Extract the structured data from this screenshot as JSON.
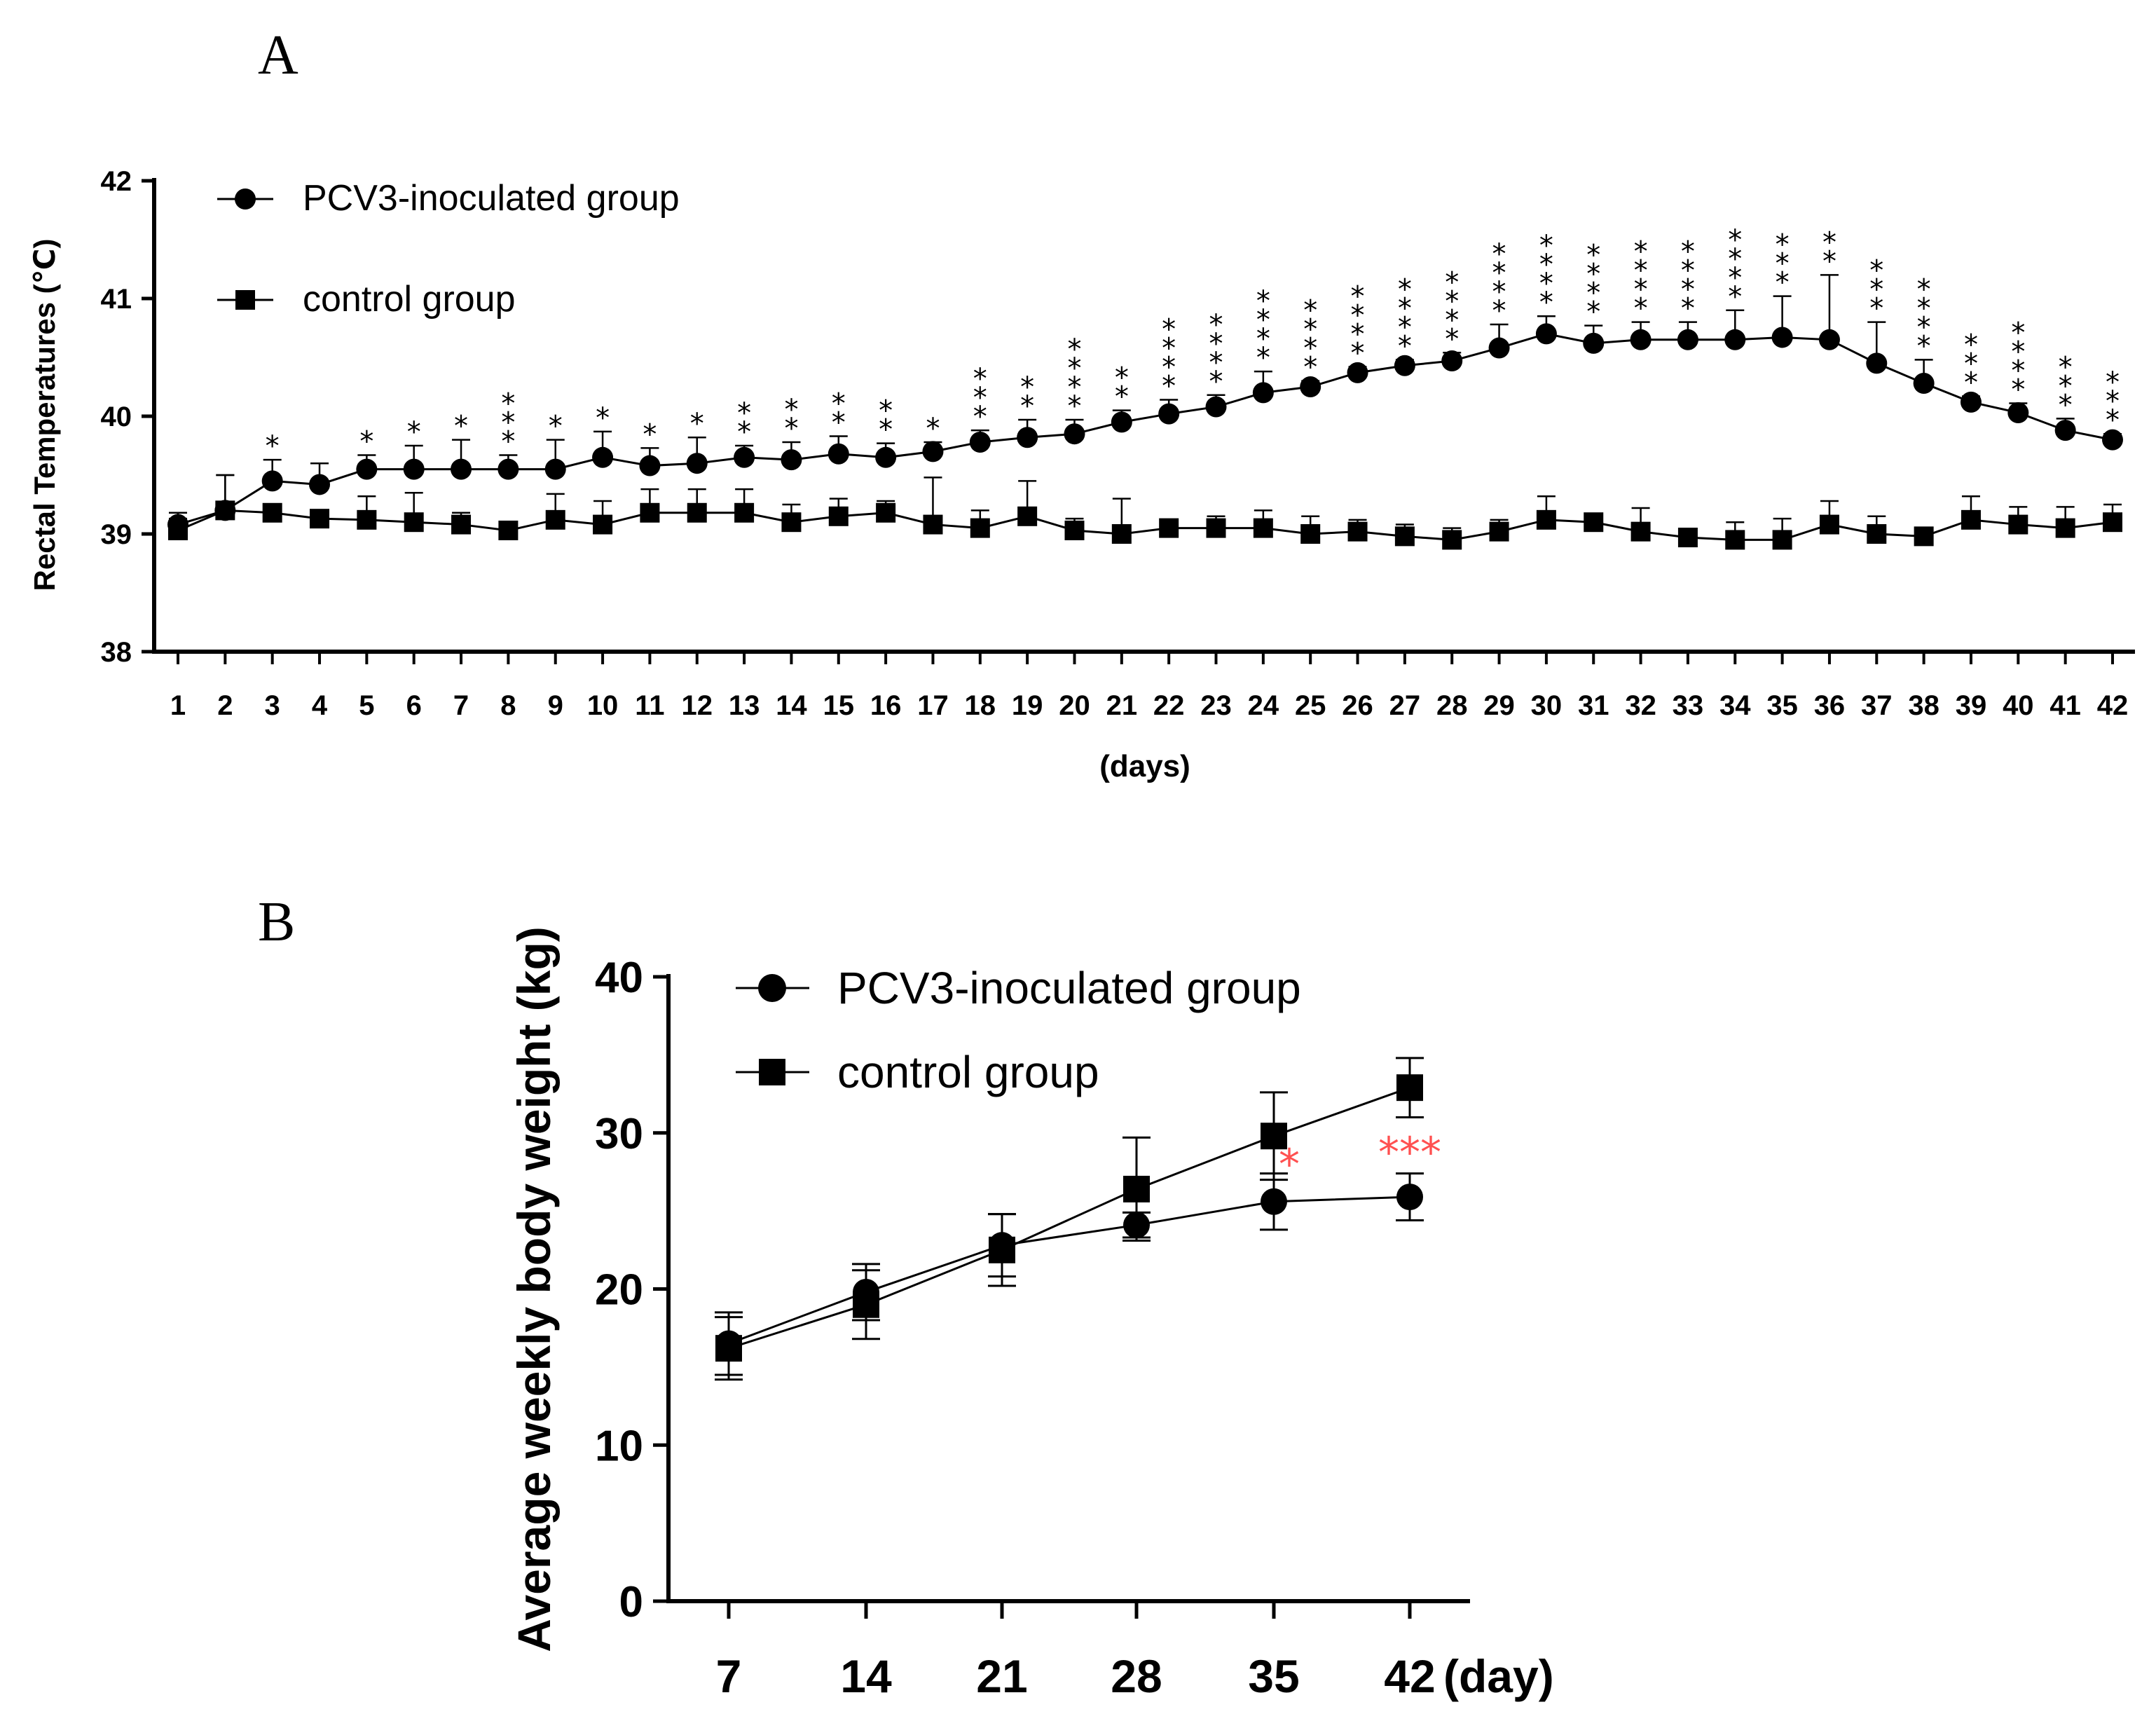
{
  "panels": {
    "a_label": "A",
    "b_label": "B"
  },
  "chart_data": [
    {
      "id": "A",
      "type": "line",
      "title": "",
      "xlabel": "(days)",
      "ylabel": "Rectal Temperatures (℃)",
      "ylim": [
        38,
        42
      ],
      "yticks": [
        38,
        39,
        40,
        41,
        42
      ],
      "xlim": [
        1,
        42
      ],
      "x": [
        1,
        2,
        3,
        4,
        5,
        6,
        7,
        8,
        9,
        10,
        11,
        12,
        13,
        14,
        15,
        16,
        17,
        18,
        19,
        20,
        21,
        22,
        23,
        24,
        25,
        26,
        27,
        28,
        29,
        30,
        31,
        32,
        33,
        34,
        35,
        36,
        37,
        38,
        39,
        40,
        41,
        42
      ],
      "legend_position": "top-left",
      "series": [
        {
          "name": "PCV3-inoculated group",
          "marker": "circle",
          "values": [
            39.08,
            39.2,
            39.45,
            39.42,
            39.55,
            39.55,
            39.55,
            39.55,
            39.55,
            39.65,
            39.58,
            39.6,
            39.65,
            39.63,
            39.68,
            39.65,
            39.7,
            39.78,
            39.82,
            39.85,
            39.95,
            40.02,
            40.08,
            40.2,
            40.25,
            40.37,
            40.43,
            40.47,
            40.58,
            40.7,
            40.62,
            40.65,
            40.65,
            40.65,
            40.67,
            40.65,
            40.45,
            40.28,
            40.12,
            40.03,
            39.88,
            39.8
          ],
          "error": [
            0.1,
            0.3,
            0.18,
            0.18,
            0.12,
            0.2,
            0.25,
            0.12,
            0.25,
            0.22,
            0.15,
            0.22,
            0.1,
            0.15,
            0.15,
            0.12,
            0.08,
            0.1,
            0.15,
            0.12,
            0.1,
            0.12,
            0.1,
            0.18,
            0.05,
            0.05,
            0.05,
            0.07,
            0.2,
            0.15,
            0.15,
            0.15,
            0.15,
            0.25,
            0.35,
            0.55,
            0.35,
            0.2,
            0.05,
            0.08,
            0.1,
            0.05
          ]
        },
        {
          "name": "control group",
          "marker": "square",
          "values": [
            39.03,
            39.2,
            39.18,
            39.13,
            39.12,
            39.1,
            39.08,
            39.03,
            39.12,
            39.08,
            39.18,
            39.18,
            39.18,
            39.1,
            39.15,
            39.18,
            39.08,
            39.05,
            39.15,
            39.03,
            39.0,
            39.05,
            39.05,
            39.05,
            39.0,
            39.02,
            38.98,
            38.95,
            39.02,
            39.12,
            39.1,
            39.02,
            38.97,
            38.95,
            38.95,
            39.08,
            39.0,
            38.98,
            39.12,
            39.08,
            39.05,
            39.1
          ],
          "error": [
            0.1,
            0.3,
            0.05,
            0.05,
            0.2,
            0.25,
            0.1,
            0.05,
            0.22,
            0.2,
            0.2,
            0.2,
            0.2,
            0.15,
            0.15,
            0.1,
            0.4,
            0.15,
            0.3,
            0.1,
            0.3,
            0.05,
            0.1,
            0.15,
            0.15,
            0.1,
            0.1,
            0.1,
            0.1,
            0.2,
            0.05,
            0.2,
            0.05,
            0.15,
            0.18,
            0.2,
            0.15,
            0.05,
            0.2,
            0.15,
            0.18,
            0.15
          ]
        }
      ],
      "significance": [
        "",
        "",
        "*",
        "",
        "*",
        "*",
        "*",
        "***",
        "*",
        "*",
        "*",
        "*",
        "**",
        "**",
        "**",
        "**",
        "*",
        "***",
        "**",
        "****",
        "**",
        "****",
        "****",
        "****",
        "****",
        "****",
        "****",
        "****",
        "****",
        "****",
        "****",
        "****",
        "****",
        "****",
        "***",
        "**",
        "***",
        "****",
        "***",
        "****",
        "***",
        "***"
      ]
    },
    {
      "id": "B",
      "type": "line",
      "title": "",
      "xlabel": "(day)",
      "ylabel": "Average weekly body weight (kg)",
      "ylim": [
        0,
        40
      ],
      "yticks": [
        0,
        10,
        20,
        30,
        40
      ],
      "categories": [
        "7",
        "14",
        "21",
        "28",
        "35",
        "42"
      ],
      "legend_position": "top-left",
      "series": [
        {
          "name": "PCV3-inoculated group",
          "marker": "circle",
          "values": [
            16.5,
            19.8,
            22.8,
            24.1,
            25.6,
            25.9
          ],
          "error": [
            2.0,
            1.8,
            2.0,
            0.8,
            1.8,
            1.5
          ]
        },
        {
          "name": "control group",
          "marker": "square",
          "values": [
            16.2,
            19.0,
            22.5,
            26.4,
            29.8,
            32.9
          ],
          "error": [
            2.0,
            2.2,
            2.3,
            3.3,
            2.8,
            1.9
          ]
        }
      ],
      "significance": [
        "",
        "",
        "",
        "",
        "*",
        "***"
      ],
      "significance_color": "#ff5050"
    }
  ]
}
